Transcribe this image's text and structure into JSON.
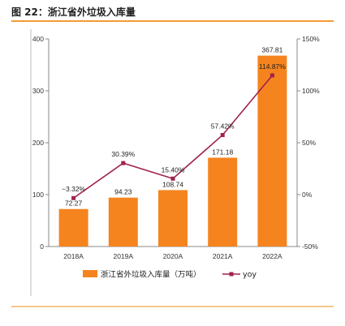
{
  "figure": {
    "title": "图 22：浙江省外垃圾入库量"
  },
  "chart_data": {
    "type": "bar",
    "categories": [
      "2018A",
      "2019A",
      "2020A",
      "2021A",
      "2022A"
    ],
    "series": [
      {
        "name": "浙江省外垃圾入库量（万吨）",
        "kind": "bar",
        "axis": "left",
        "values": [
          72.27,
          94.23,
          108.74,
          171.18,
          367.81
        ],
        "labels": [
          "72.27",
          "94.23",
          "108.74",
          "171.18",
          "367.81"
        ]
      },
      {
        "name": "yoy",
        "kind": "line",
        "axis": "right",
        "values": [
          -3.32,
          30.39,
          15.4,
          57.42,
          114.87
        ],
        "labels": [
          "−3.32%",
          "30.39%",
          "15.40%",
          "57.42%",
          "114.87%"
        ]
      }
    ],
    "y_left": {
      "ylim": [
        0,
        400
      ],
      "ticks": [
        "0",
        "100",
        "200",
        "300",
        "400"
      ],
      "tick_values": [
        0,
        100,
        200,
        300,
        400
      ]
    },
    "y_right": {
      "ylim": [
        -50,
        150
      ],
      "ticks": [
        "-50%",
        "0%",
        "50%",
        "100%",
        "150%"
      ],
      "tick_values": [
        -50,
        0,
        50,
        100,
        150
      ]
    },
    "legend": "bottom",
    "grid": false,
    "colors": {
      "bar": "#f5841f",
      "line": "#a0234a",
      "marker": "#a0234a",
      "axis": "#888888"
    }
  }
}
